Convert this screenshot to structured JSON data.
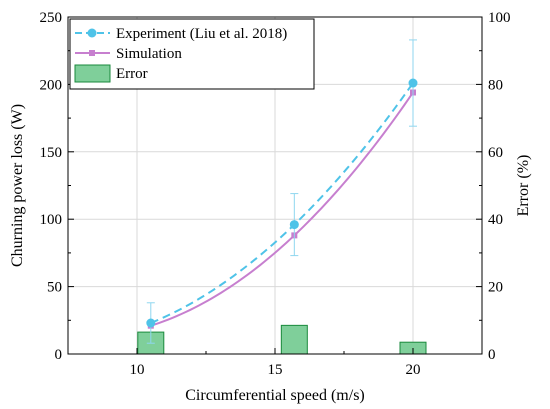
{
  "chart_data": {
    "type": "line",
    "xlabel": "Circumferential speed (m/s)",
    "ylabel": "Churning power loss (W)",
    "y2label": "Error (%)",
    "xlim": [
      7.5,
      22.5
    ],
    "ylim": [
      0,
      250
    ],
    "y2lim": [
      0,
      100
    ],
    "xticks": [
      "10",
      "15",
      "20"
    ],
    "yticks": [
      "0",
      "50",
      "100",
      "150",
      "200",
      "250"
    ],
    "y2ticks": [
      "0",
      "20",
      "40",
      "60",
      "80",
      "100"
    ],
    "grid": true,
    "legend_position": "top-left",
    "series": [
      {
        "name": "Experiment (Liu et al. 2018)",
        "style": "dashed-line-circle-markers",
        "color": "#4fc3e8",
        "x": [
          10.5,
          15.7,
          20
        ],
        "y": [
          23,
          96,
          201
        ],
        "error": [
          15,
          23,
          32
        ]
      },
      {
        "name": "Simulation",
        "style": "solid-line-square-markers",
        "color": "#c77fcf",
        "x": [
          10.5,
          15.7,
          20
        ],
        "y": [
          21,
          88,
          194
        ]
      },
      {
        "name": "Error",
        "style": "bar",
        "color": "#7fcf9a",
        "axis": "right",
        "x": [
          10.5,
          15.7,
          20
        ],
        "y": [
          6.5,
          8.5,
          3.5
        ]
      }
    ]
  }
}
